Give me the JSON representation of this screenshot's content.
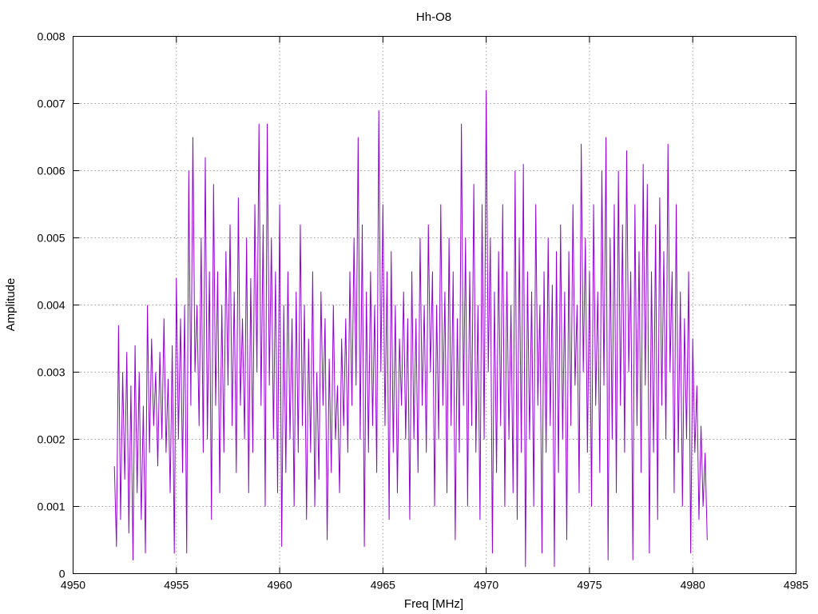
{
  "chart_data": {
    "type": "line",
    "title": "Hh-O8",
    "xlabel": "Freq [MHz]",
    "ylabel": "Amplitude",
    "xlim": [
      4950,
      4985
    ],
    "ylim": [
      0,
      0.008
    ],
    "xticks": [
      4950,
      4955,
      4960,
      4965,
      4970,
      4975,
      4980,
      4985
    ],
    "xtick_labels": [
      "4950",
      "4955",
      "4960",
      "4965",
      "4970",
      "4975",
      "4980",
      "4985"
    ],
    "yticks": [
      0,
      0.001,
      0.002,
      0.003,
      0.004,
      0.005,
      0.006,
      0.007,
      0.008
    ],
    "ytick_labels": [
      "0",
      "0.001",
      "0.002",
      "0.003",
      "0.004",
      "0.005",
      "0.006",
      "0.007",
      "0.008"
    ],
    "grid": true,
    "series": [
      {
        "color": "#9400d3",
        "x_start": 4952.0,
        "x_step": 0.1,
        "values": [
          0.0016,
          0.0004,
          0.0037,
          0.0008,
          0.003,
          0.0014,
          0.0033,
          0.0006,
          0.0028,
          0.0002,
          0.0034,
          0.0012,
          0.003,
          0.0008,
          0.0025,
          0.0003,
          0.004,
          0.0018,
          0.0035,
          0.0022,
          0.003,
          0.0016,
          0.0033,
          0.002,
          0.0038,
          0.0018,
          0.0029,
          0.0012,
          0.0034,
          0.0003,
          0.0044,
          0.002,
          0.0038,
          0.0015,
          0.004,
          0.0003,
          0.006,
          0.0025,
          0.0065,
          0.003,
          0.004,
          0.0022,
          0.005,
          0.0018,
          0.0062,
          0.002,
          0.0045,
          0.0008,
          0.0058,
          0.0025,
          0.0045,
          0.0012,
          0.004,
          0.0018,
          0.0048,
          0.0028,
          0.0052,
          0.0022,
          0.0042,
          0.0015,
          0.0056,
          0.0025,
          0.0038,
          0.002,
          0.005,
          0.0012,
          0.0044,
          0.0018,
          0.0055,
          0.003,
          0.0067,
          0.0025,
          0.0052,
          0.001,
          0.0067,
          0.0028,
          0.005,
          0.002,
          0.0045,
          0.0012,
          0.0055,
          0.0004,
          0.004,
          0.0015,
          0.0045,
          0.002,
          0.0038,
          0.001,
          0.0042,
          0.0018,
          0.0052,
          0.0022,
          0.004,
          0.0008,
          0.0035,
          0.0018,
          0.0045,
          0.001,
          0.003,
          0.0014,
          0.0042,
          0.0025,
          0.0038,
          0.0005,
          0.0032,
          0.0015,
          0.004,
          0.002,
          0.0028,
          0.0012,
          0.0035,
          0.0022,
          0.0038,
          0.0018,
          0.0045,
          0.0025,
          0.005,
          0.0028,
          0.0065,
          0.002,
          0.0052,
          0.0004,
          0.0042,
          0.0018,
          0.0045,
          0.0022,
          0.004,
          0.0015,
          0.0069,
          0.003,
          0.0055,
          0.0022,
          0.0045,
          0.0008,
          0.0048,
          0.0018,
          0.004,
          0.0012,
          0.0035,
          0.0025,
          0.0042,
          0.002,
          0.0038,
          0.0008,
          0.0045,
          0.002,
          0.0038,
          0.0015,
          0.005,
          0.0025,
          0.004,
          0.0018,
          0.0052,
          0.003,
          0.0045,
          0.001,
          0.004,
          0.002,
          0.0055,
          0.0025,
          0.0042,
          0.0012,
          0.005,
          0.0022,
          0.0045,
          0.0005,
          0.0038,
          0.0018,
          0.0067,
          0.0025,
          0.005,
          0.001,
          0.0045,
          0.0022,
          0.0058,
          0.0018,
          0.004,
          0.0008,
          0.0055,
          0.002,
          0.0072,
          0.003,
          0.005,
          0.0003,
          0.0042,
          0.0015,
          0.0048,
          0.0022,
          0.0055,
          0.001,
          0.0045,
          0.002,
          0.004,
          0.0012,
          0.006,
          0.0008,
          0.005,
          0.0018,
          0.0061,
          0.0001,
          0.0045,
          0.002,
          0.0042,
          0.001,
          0.0055,
          0.0025,
          0.004,
          0.0003,
          0.0045,
          0.0018,
          0.005,
          0.0022,
          0.0043,
          0.0001,
          0.0048,
          0.0015,
          0.0052,
          0.002,
          0.0042,
          0.0005,
          0.0048,
          0.0022,
          0.0055,
          0.0028,
          0.004,
          0.0012,
          0.0064,
          0.003,
          0.005,
          0.0018,
          0.0045,
          0.001,
          0.0055,
          0.0025,
          0.0042,
          0.0015,
          0.006,
          0.0028,
          0.0065,
          0.0002,
          0.005,
          0.002,
          0.0055,
          0.0012,
          0.006,
          0.0025,
          0.0052,
          0.0018,
          0.0063,
          0.003,
          0.0045,
          0.0002,
          0.0055,
          0.0022,
          0.0048,
          0.0015,
          0.0061,
          0.0028,
          0.0058,
          0.0003,
          0.0045,
          0.0018,
          0.0052,
          0.0008,
          0.0056,
          0.0025,
          0.0048,
          0.002,
          0.0064,
          0.003,
          0.0045,
          0.0012,
          0.0055,
          0.0018,
          0.0042,
          0.001,
          0.0038,
          0.002,
          0.0045,
          0.0003,
          0.0035,
          0.0018,
          0.0028,
          0.0008,
          0.0022,
          0.001,
          0.0018,
          0.0005
        ]
      }
    ]
  }
}
